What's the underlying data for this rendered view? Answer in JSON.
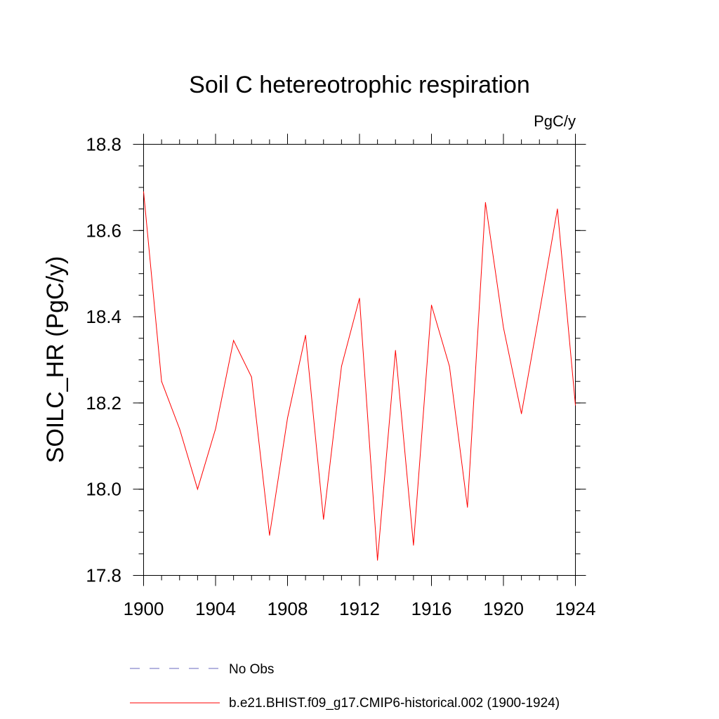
{
  "chart_data": {
    "type": "line",
    "title": "Soil C hetereotrophic respiration",
    "units_label": "PgC/y",
    "ylabel": "SOILC_HR  (PgC/y)",
    "xlabel": "",
    "xlim": [
      1900,
      1924
    ],
    "ylim": [
      17.8,
      18.8
    ],
    "x_ticks": [
      1900,
      1904,
      1908,
      1912,
      1916,
      1920,
      1924
    ],
    "x_tick_labels": [
      "1900",
      "1904",
      "1908",
      "1912",
      "1916",
      "1920",
      "1924"
    ],
    "y_ticks": [
      17.8,
      18.0,
      18.2,
      18.4,
      18.6,
      18.8
    ],
    "y_tick_labels": [
      "17.8",
      "18.0",
      "18.2",
      "18.4",
      "18.6",
      "18.8"
    ],
    "grid": false,
    "legend_position": "bottom",
    "series": [
      {
        "name": "b.e21.BHIST.f09_g17.CMIP6-historical.002 (1900-1924)",
        "color": "#ff0000",
        "style": "solid",
        "x": [
          1900,
          1901,
          1902,
          1903,
          1904,
          1905,
          1906,
          1907,
          1908,
          1909,
          1910,
          1911,
          1912,
          1913,
          1914,
          1915,
          1916,
          1917,
          1918,
          1919,
          1920,
          1921,
          1922,
          1923,
          1924
        ],
        "values": [
          18.69,
          18.25,
          18.14,
          18.0,
          18.14,
          18.345,
          18.26,
          17.893,
          18.165,
          18.357,
          17.93,
          18.285,
          18.443,
          17.835,
          18.322,
          17.87,
          18.427,
          18.285,
          17.958,
          18.665,
          18.375,
          18.175,
          18.41,
          18.65,
          18.195
        ]
      }
    ],
    "legend": [
      {
        "label": "No Obs",
        "color": "#6a6abf",
        "style": "dashed"
      },
      {
        "label": "b.e21.BHIST.f09_g17.CMIP6-historical.002 (1900-1924)",
        "color": "#ff0000",
        "style": "solid"
      }
    ]
  }
}
